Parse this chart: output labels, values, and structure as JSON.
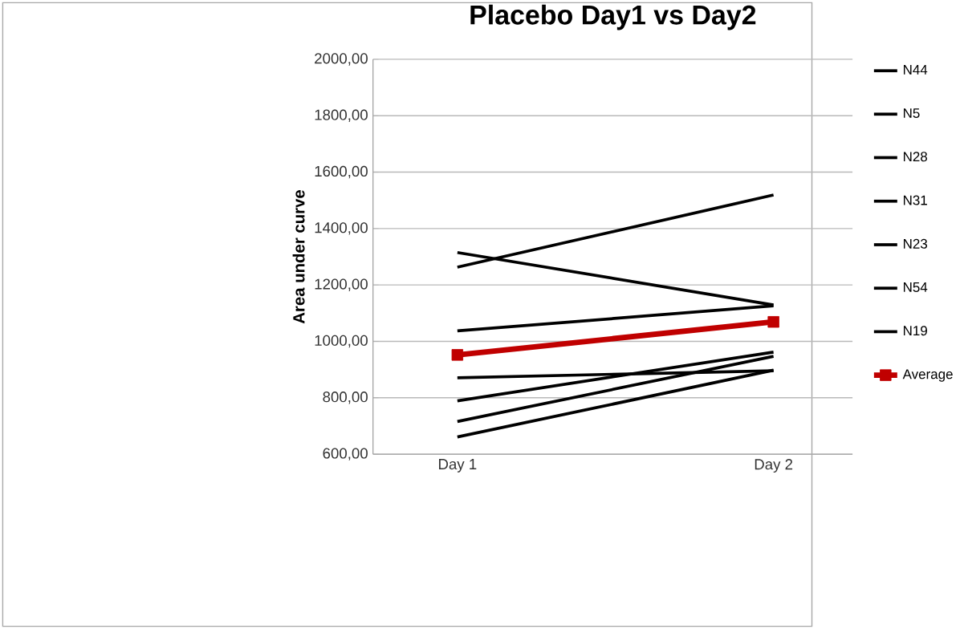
{
  "chart_data": {
    "type": "line",
    "title": "Placebo Day1 vs Day2",
    "ylabel": "Area under curve",
    "categories": [
      "Day 1",
      "Day 2"
    ],
    "ylim": [
      600,
      2000
    ],
    "yticks": [
      {
        "value": 600,
        "label": "600,00"
      },
      {
        "value": 800,
        "label": "800,00"
      },
      {
        "value": 1000,
        "label": "1000,00"
      },
      {
        "value": 1200,
        "label": "1200,00"
      },
      {
        "value": 1400,
        "label": "1400,00"
      },
      {
        "value": 1600,
        "label": "1600,00"
      },
      {
        "value": 1800,
        "label": "1800,00"
      },
      {
        "value": 2000,
        "label": "2000,00"
      }
    ],
    "grid": "y",
    "legend": "right",
    "marker": "none",
    "series": [
      {
        "name": "N44",
        "color": "#000000",
        "values": [
          1263,
          1519
        ]
      },
      {
        "name": "N5",
        "color": "#000000",
        "values": [
          1315,
          1129
        ]
      },
      {
        "name": "N28",
        "color": "#000000",
        "values": [
          1037,
          1126
        ]
      },
      {
        "name": "N31",
        "color": "#000000",
        "values": [
          871,
          896
        ]
      },
      {
        "name": "N23",
        "color": "#000000",
        "values": [
          789,
          962
        ]
      },
      {
        "name": "N54",
        "color": "#000000",
        "values": [
          716,
          947
        ]
      },
      {
        "name": "N19",
        "color": "#000000",
        "values": [
          661,
          898
        ]
      },
      {
        "name": "Average",
        "color": "#c00000",
        "marker": "square",
        "values": [
          952,
          1069
        ]
      }
    ]
  }
}
